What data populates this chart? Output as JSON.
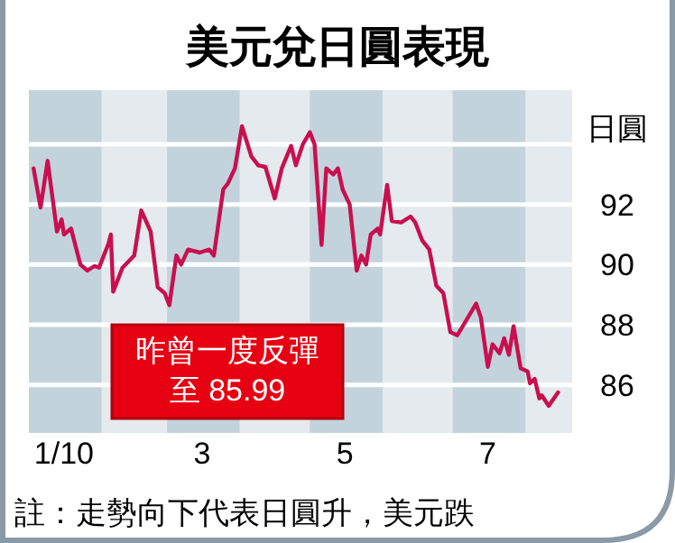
{
  "chart_data": {
    "type": "line",
    "title": "美元兌日圓表現",
    "ylabel": "日圓",
    "annotations": [
      "昨曾一度反彈至 85.99",
      "註：走勢向下代表日圓升，美元跌"
    ],
    "series": [
      {
        "color": "#c8104e",
        "x": [
          "2010-01-03",
          "2010-01-06",
          "2010-01-09",
          "2010-01-13",
          "2010-01-15",
          "2010-01-16",
          "2010-01-19",
          "2010-01-23",
          "2010-01-26",
          "2010-01-29",
          "2010-01-31",
          "2010-02-04",
          "2010-02-05",
          "2010-02-06",
          "2010-02-10",
          "2010-02-15",
          "2010-02-18",
          "2010-02-22",
          "2010-02-25",
          "2010-02-28",
          "2010-03-02",
          "2010-03-05",
          "2010-03-07",
          "2010-03-10",
          "2010-03-15",
          "2010-03-19",
          "2010-03-21",
          "2010-03-25",
          "2010-03-27",
          "2010-03-30",
          "2010-04-02",
          "2010-04-06",
          "2010-04-09",
          "2010-04-12",
          "2010-04-16",
          "2010-04-19",
          "2010-04-23",
          "2010-04-25",
          "2010-04-28",
          "2010-05-01",
          "2010-05-03",
          "2010-05-06",
          "2010-05-08",
          "2010-05-11",
          "2010-05-13",
          "2010-05-15",
          "2010-05-18",
          "2010-05-21",
          "2010-05-23",
          "2010-05-25",
          "2010-05-27",
          "2010-05-30",
          "2010-05-31",
          "2010-06-03",
          "2010-06-05",
          "2010-06-09",
          "2010-06-13",
          "2010-06-15",
          "2010-06-18",
          "2010-06-21",
          "2010-06-24",
          "2010-06-27",
          "2010-06-30",
          "2010-07-03",
          "2010-07-11",
          "2010-07-13",
          "2010-07-16",
          "2010-07-18",
          "2010-07-21",
          "2010-07-23",
          "2010-07-25",
          "2010-07-27",
          "2010-07-30",
          "2010-08-02",
          "2010-08-03",
          "2010-08-05",
          "2010-08-07",
          "2010-08-08",
          "2010-08-11",
          "2010-08-15"
        ],
        "values": [
          93.2,
          91.9,
          93.45,
          91.1,
          91.5,
          91.0,
          91.2,
          90.0,
          89.8,
          89.95,
          89.9,
          90.7,
          91.0,
          89.1,
          89.9,
          90.3,
          91.8,
          91.1,
          89.25,
          89.05,
          88.65,
          90.3,
          90.0,
          90.5,
          90.4,
          90.5,
          90.3,
          92.5,
          92.7,
          93.2,
          94.6,
          93.6,
          93.3,
          93.25,
          92.2,
          93.2,
          93.95,
          93.3,
          94.0,
          94.4,
          94.0,
          90.65,
          93.2,
          93.0,
          93.2,
          92.5,
          92.0,
          89.8,
          90.3,
          90.0,
          91.0,
          91.2,
          91.0,
          92.65,
          91.45,
          91.4,
          91.6,
          91.4,
          90.8,
          90.5,
          89.3,
          89.05,
          87.75,
          87.65,
          88.7,
          88.25,
          86.6,
          87.35,
          87.05,
          87.55,
          87.0,
          87.95,
          86.55,
          86.45,
          86.05,
          86.2,
          85.55,
          85.65,
          85.3,
          85.75
        ]
      }
    ],
    "xlim": [
      "2010-01-01",
      "2010-08-21"
    ],
    "xticks": [
      {
        "value": "2010-01-16",
        "label": "1/10"
      },
      {
        "value": "2010-03-16",
        "label": "3"
      },
      {
        "value": "2010-05-16",
        "label": "5"
      },
      {
        "value": "2010-07-16",
        "label": "7"
      }
    ],
    "ylim": [
      84.4,
      95.8
    ],
    "yticks": [
      86,
      88,
      90,
      92,
      {
        "value": 94,
        "label": null
      }
    ],
    "grid": "y",
    "marker": "none",
    "line_style": "solid",
    "bands": [
      {
        "axis": "x",
        "from": "2010-01-01",
        "to": "2010-02-01",
        "color": "#c3d3dc"
      },
      {
        "axis": "x",
        "from": "2010-03-01",
        "to": "2010-04-01",
        "color": "#c3d3dc"
      },
      {
        "axis": "x",
        "from": "2010-05-01",
        "to": "2010-06-01",
        "color": "#c3d3dc"
      },
      {
        "axis": "x",
        "from": "2010-07-01",
        "to": "2010-08-01",
        "color": "#c3d3dc"
      }
    ]
  }
}
